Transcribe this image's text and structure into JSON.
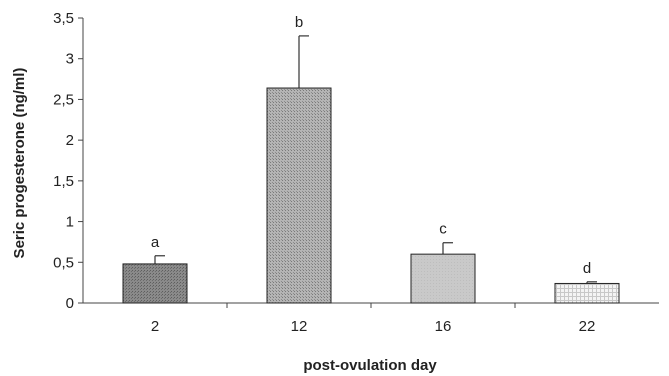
{
  "chart_data": {
    "type": "bar",
    "xlabel": "post-ovulation day",
    "ylabel": "Seric progesterone (ng/ml)",
    "categories": [
      "2",
      "12",
      "16",
      "22"
    ],
    "values": [
      0.48,
      2.64,
      0.6,
      0.24
    ],
    "error_upper": [
      0.58,
      3.28,
      0.74,
      0.26
    ],
    "significance_labels": [
      "a",
      "b",
      "c",
      "d"
    ],
    "ylim": [
      0,
      3.5
    ],
    "yticks": [
      0,
      0.5,
      1,
      1.5,
      2,
      2.5,
      3,
      3.5
    ],
    "ytick_labels": [
      "0",
      "0,5",
      "1",
      "1,5",
      "2",
      "2,5",
      "3",
      "3,5"
    ],
    "legend": "none",
    "grid": false,
    "bar_fills": [
      {
        "pattern": "dark-gray-dots",
        "color": "#7d7d7d"
      },
      {
        "pattern": "gray-dots",
        "color": "#a9a9a9"
      },
      {
        "pattern": "light-gray",
        "color": "#c8c8c8"
      },
      {
        "pattern": "fine-grid-white",
        "color": "#ececec"
      }
    ]
  }
}
